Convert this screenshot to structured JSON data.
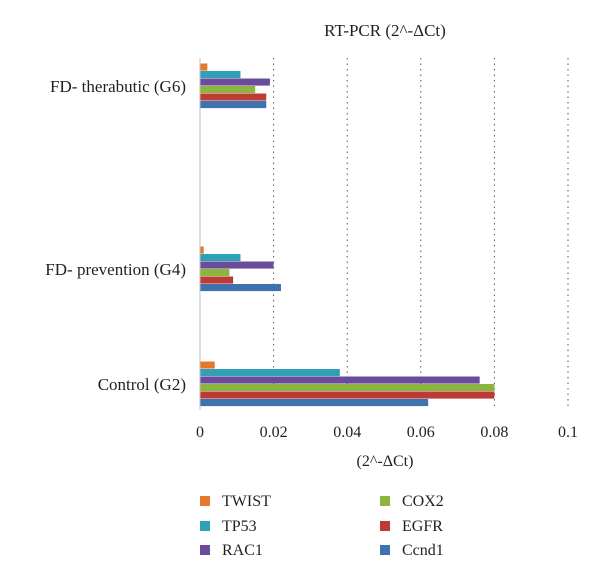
{
  "chart_data": {
    "type": "bar",
    "orientation": "horizontal",
    "title": "RT-PCR (2^-ΔCt)",
    "xlabel": "(2^-ΔCt)",
    "ylabel": "",
    "xlim": [
      0,
      0.1
    ],
    "x_ticks": [
      "0",
      "0.02",
      "0.04",
      "0.06",
      "0.08",
      "0.1"
    ],
    "grid": "vertical dotted",
    "legend_position": "bottom",
    "categories": [
      "Control (G2)",
      "FD- prevention (G4)",
      "FD- therabutic (G6)"
    ],
    "series": [
      {
        "name": "TWIST",
        "color": "#e8772e",
        "values": [
          0.004,
          0.001,
          0.002
        ]
      },
      {
        "name": "TP53",
        "color": "#2fa0b5",
        "values": [
          0.038,
          0.011,
          0.011
        ]
      },
      {
        "name": "RAC1",
        "color": "#6b4c9a",
        "values": [
          0.076,
          0.02,
          0.019
        ]
      },
      {
        "name": "COX2",
        "color": "#8db43e",
        "values": [
          0.08,
          0.008,
          0.015
        ]
      },
      {
        "name": "EGFR",
        "color": "#be3a34",
        "values": [
          0.08,
          0.009,
          0.018
        ]
      },
      {
        "name": "Ccnd1",
        "color": "#3f72b0",
        "values": [
          0.062,
          0.022,
          0.018
        ]
      }
    ]
  }
}
